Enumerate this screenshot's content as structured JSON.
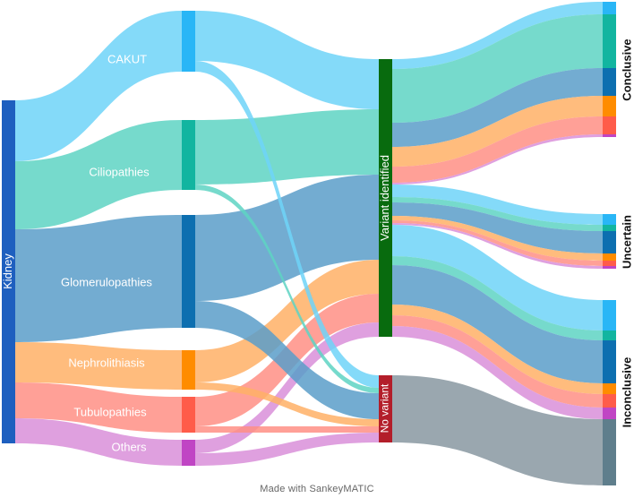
{
  "diagram": {
    "type": "sankey",
    "credit": "Made with SankeyMATIC",
    "nodes": {
      "kidney": {
        "label": "Kidney",
        "color": "#1e5fbf"
      },
      "cakut": {
        "label": "CAKUT",
        "color": "#29b6f6"
      },
      "ciliopathies": {
        "label": "Ciliopathies",
        "color": "#12b5a0"
      },
      "glomerulopathies": {
        "label": "Glomerulopathies",
        "color": "#0d6fb0"
      },
      "nephrolithiasis": {
        "label": "Nephrolithiasis",
        "color": "#ff8c00"
      },
      "tubulopathies": {
        "label": "Tubulopathies",
        "color": "#ff5c4a"
      },
      "others": {
        "label": "Others",
        "color": "#c045c4"
      },
      "variant_identified": {
        "label": "Variant identified",
        "color": "#086b0e"
      },
      "no_variant": {
        "label": "No variant",
        "color": "#b31e2a"
      },
      "conclusive": {
        "label": "Conclusive"
      },
      "uncertain": {
        "label": "Uncertain"
      },
      "inconclusive": {
        "label": "Inconclusive"
      }
    },
    "flow_colors": {
      "cakut": "#6fd4f8",
      "ciliopathies": "#5ed3c3",
      "glomerulopathies": "#5b9ec9",
      "nephrolithiasis": "#ffb066",
      "tubulopathies": "#ff8f85",
      "others": "#d98fd9",
      "no_variant": "#9aa7af",
      "no_variant_bar": "#5f7e8c"
    }
  }
}
